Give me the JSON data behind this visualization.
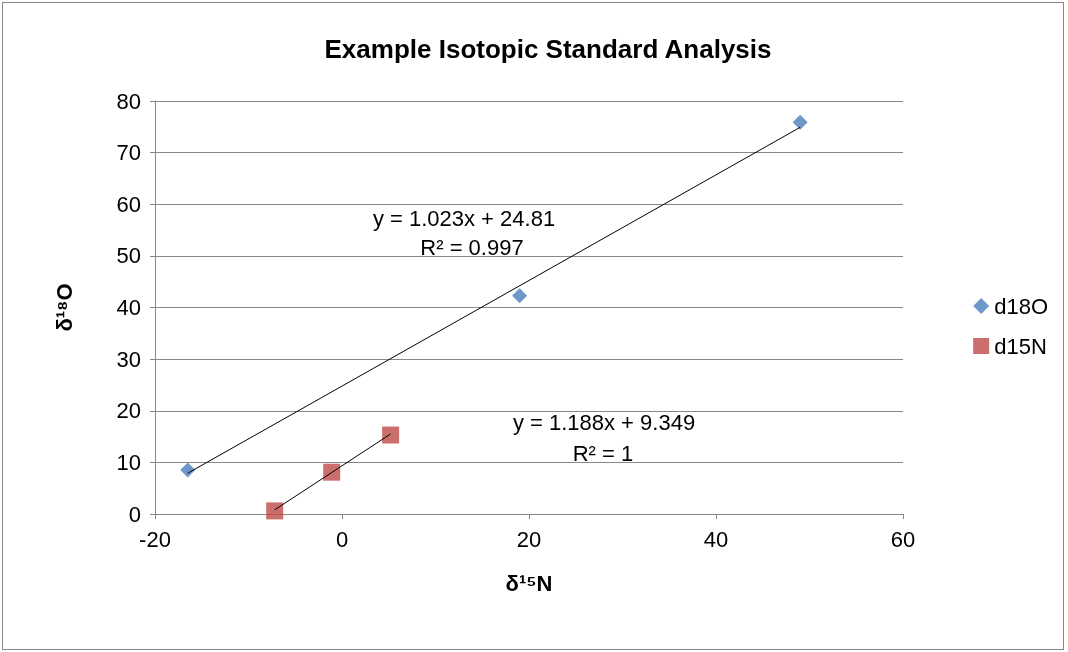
{
  "chart_data": {
    "type": "scatter",
    "title": "Example Isotopic Standard Analysis",
    "xlabel": "δ¹⁵N",
    "ylabel": "δ¹⁸O",
    "xlim": [
      -20,
      60
    ],
    "xticks": [
      -20,
      0,
      20,
      40,
      60
    ],
    "ylim": [
      0,
      80
    ],
    "yticks": [
      0,
      10,
      20,
      30,
      40,
      50,
      60,
      70,
      80
    ],
    "grid": "y",
    "legend": "right",
    "series": [
      {
        "name": "d18O",
        "marker": "diamond",
        "color": "#4a7ebb",
        "x": [
          -16.5,
          19.0,
          49.0
        ],
        "values": [
          8.5,
          42.3,
          75.9
        ]
      },
      {
        "name": "d15N",
        "marker": "square",
        "color": "#be4b48",
        "x": [
          -7.2,
          -1.1,
          5.2
        ],
        "values": [
          0.6,
          8.1,
          15.3
        ]
      },
      {
        "type": "line",
        "marker": "none",
        "color": "#000000",
        "x": [
          -16.5,
          49.0
        ],
        "values": [
          7.9,
          74.9
        ]
      },
      {
        "type": "line",
        "marker": "none",
        "color": "#000000",
        "x": [
          -7.2,
          5.2
        ],
        "values": [
          0.8,
          15.5
        ]
      }
    ],
    "annotations": [
      "y = 1.023x + 24.81",
      "R² = 0.997",
      "y = 1.188x + 9.349",
      "R² = 1"
    ]
  }
}
